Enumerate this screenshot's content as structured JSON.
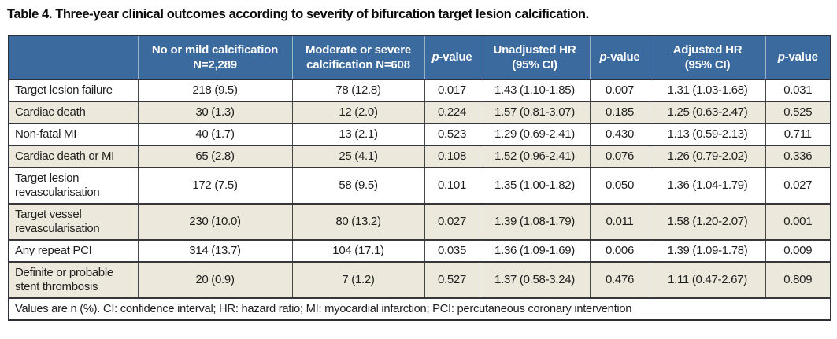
{
  "title": "Table 4. Three-year clinical outcomes according to severity of bifurcation target lesion calcification.",
  "colors": {
    "header_bg": "#3a6a9e",
    "header_text": "#ffffff",
    "row_alt_bg": "#ece8db",
    "row_bg": "#ffffff",
    "border_dark": "#2c2f36",
    "text": "#1f1f1f"
  },
  "table": {
    "headers": [
      {
        "line1": "",
        "line2": ""
      },
      {
        "line1": "No or mild calcification",
        "line2": "N=2,289"
      },
      {
        "line1": "Moderate or severe",
        "line2": "calcification N=608"
      },
      {
        "line1": "p-value",
        "line2": ""
      },
      {
        "line1": "Unadjusted HR",
        "line2": "(95% CI)"
      },
      {
        "line1": "p-value",
        "line2": ""
      },
      {
        "line1": "Adjusted HR",
        "line2": "(95% CI)"
      },
      {
        "line1": "p-value",
        "line2": ""
      }
    ],
    "rows": [
      {
        "cells": [
          "Target lesion failure",
          "218 (9.5)",
          "78 (12.8)",
          "0.017",
          "1.43 (1.10-1.85)",
          "0.007",
          "1.31 (1.03-1.68)",
          "0.031"
        ]
      },
      {
        "cells": [
          "Cardiac death",
          "30 (1.3)",
          "12 (2.0)",
          "0.224",
          "1.57 (0.81-3.07)",
          "0.185",
          "1.25 (0.63-2.47)",
          "0.525"
        ]
      },
      {
        "cells": [
          "Non-fatal MI",
          "40 (1.7)",
          "13 (2.1)",
          "0.523",
          "1.29 (0.69-2.41)",
          "0.430",
          "1.13 (0.59-2.13)",
          "0.711"
        ]
      },
      {
        "cells": [
          "Cardiac death or MI",
          "65 (2.8)",
          "25 (4.1)",
          "0.108",
          "1.52 (0.96-2.41)",
          "0.076",
          "1.26 (0.79-2.02)",
          "0.336"
        ]
      },
      {
        "cells": [
          "Target lesion revascularisation",
          "172 (7.5)",
          "58 (9.5)",
          "0.101",
          "1.35 (1.00-1.82)",
          "0.050",
          "1.36 (1.04-1.79)",
          "0.027"
        ]
      },
      {
        "cells": [
          "Target vessel revascularisation",
          "230 (10.0)",
          "80 (13.2)",
          "0.027",
          "1.39 (1.08-1.79)",
          "0.011",
          "1.58 (1.20-2.07)",
          "0.001"
        ]
      },
      {
        "cells": [
          "Any repeat PCI",
          "314 (13.7)",
          "104 (17.1)",
          "0.035",
          "1.36 (1.09-1.69)",
          "0.006",
          "1.39 (1.09-1.78)",
          "0.009"
        ]
      },
      {
        "cells": [
          "Definite or probable stent thrombosis",
          "20 (0.9)",
          "7 (1.2)",
          "0.527",
          "1.37 (0.58-3.24)",
          "0.476",
          "1.11 (0.47-2.67)",
          "0.809"
        ]
      }
    ],
    "footnote": "Values are n (%). CI: confidence interval; HR: hazard ratio; MI: myocardial infarction; PCI: percutaneous coronary intervention"
  }
}
